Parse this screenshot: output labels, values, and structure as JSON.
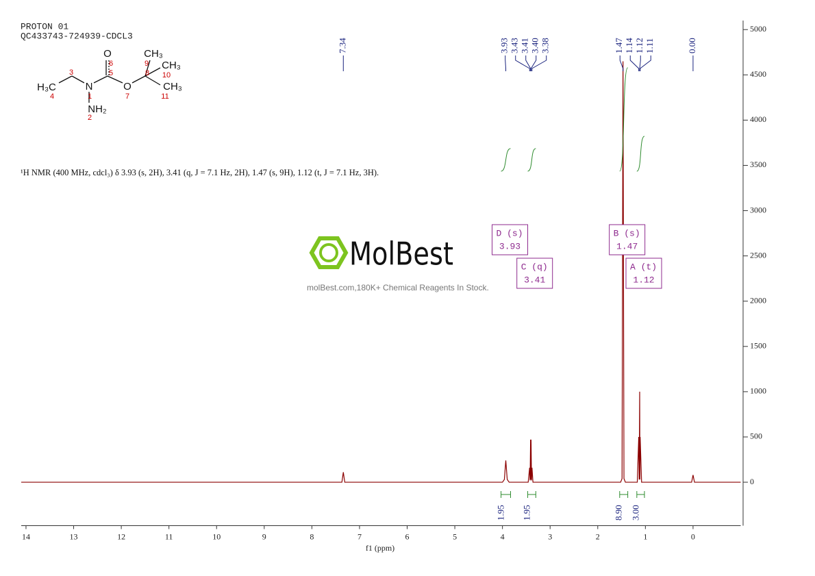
{
  "chart_data": {
    "type": "line",
    "title": "PROTON 01",
    "subtitle": "QC433743-724939-CDCL3",
    "xlabel": "f1 (ppm)",
    "xlim": [
      14.1,
      -1.0
    ],
    "xticks": [
      14,
      13,
      12,
      11,
      10,
      9,
      8,
      7,
      6,
      5,
      4,
      3,
      2,
      1,
      0
    ],
    "ylim": [
      -480,
      5100
    ],
    "yticks": [
      0,
      500,
      1000,
      1500,
      2000,
      2500,
      3000,
      3500,
      4000,
      4500,
      5000
    ],
    "color": "#8b0000",
    "x": [
      14.1,
      7.37,
      7.34,
      7.31,
      4.0,
      3.96,
      3.93,
      3.9,
      3.86,
      3.46,
      3.43,
      3.42,
      3.41,
      3.405,
      3.4,
      3.39,
      3.38,
      3.36,
      1.52,
      1.49,
      1.47,
      1.45,
      1.42,
      1.17,
      1.14,
      1.13,
      1.12,
      1.115,
      1.11,
      1.08,
      0.03,
      0.0,
      -0.03,
      -1.0
    ],
    "values": [
      0,
      0,
      110,
      0,
      0,
      30,
      240,
      30,
      0,
      0,
      160,
      20,
      470,
      30,
      470,
      20,
      160,
      0,
      0,
      40,
      4650,
      40,
      0,
      0,
      500,
      30,
      1000,
      30,
      500,
      0,
      0,
      80,
      0,
      0
    ],
    "peak_labels": [
      7.34,
      3.93,
      3.43,
      3.41,
      {
        "value": 3.4,
        "label": "3.40"
      },
      3.38,
      1.47,
      1.14,
      1.12,
      1.11,
      {
        "value": 0,
        "label": "0.00"
      }
    ],
    "multiplets": [
      {
        "label": "D (s)",
        "shift": 3.93
      },
      {
        "label": "C (q)",
        "shift": 3.41
      },
      {
        "label": "B (s)",
        "shift": 1.47
      },
      {
        "label": "A (t)",
        "shift": 1.12
      }
    ],
    "integrals": {
      "ranges": [
        [
          4.03,
          3.83
        ],
        [
          3.47,
          3.3
        ],
        [
          1.54,
          1.37
        ],
        [
          1.18,
          1.02
        ]
      ],
      "values": [
        1.95,
        1.95,
        8.9,
        3
      ],
      "value_labels": [
        "1.95",
        "1.95",
        "8.90",
        "3.00"
      ]
    },
    "description": "¹H NMR (400 MHz, cdcl₃) δ 3.93 (s, 2H), 3.41 (q, J = 7.1 Hz, 2H), 1.47 (s, 9H), 1.12 (t, J = 7.1 Hz, 3H).",
    "watermark": {
      "brand": "MolBest",
      "tagline": "molBest.com,180K+ Chemical Reagents In Stock."
    },
    "structure": {
      "atoms": [
        "O",
        "H₃C",
        "N",
        "NH₂",
        "O",
        "CH₃",
        "CH₃",
        "CH₃"
      ],
      "numbers": [
        "1",
        "2",
        "3",
        "4",
        "5",
        "6",
        "7",
        "8",
        "9",
        "10",
        "11"
      ]
    }
  }
}
